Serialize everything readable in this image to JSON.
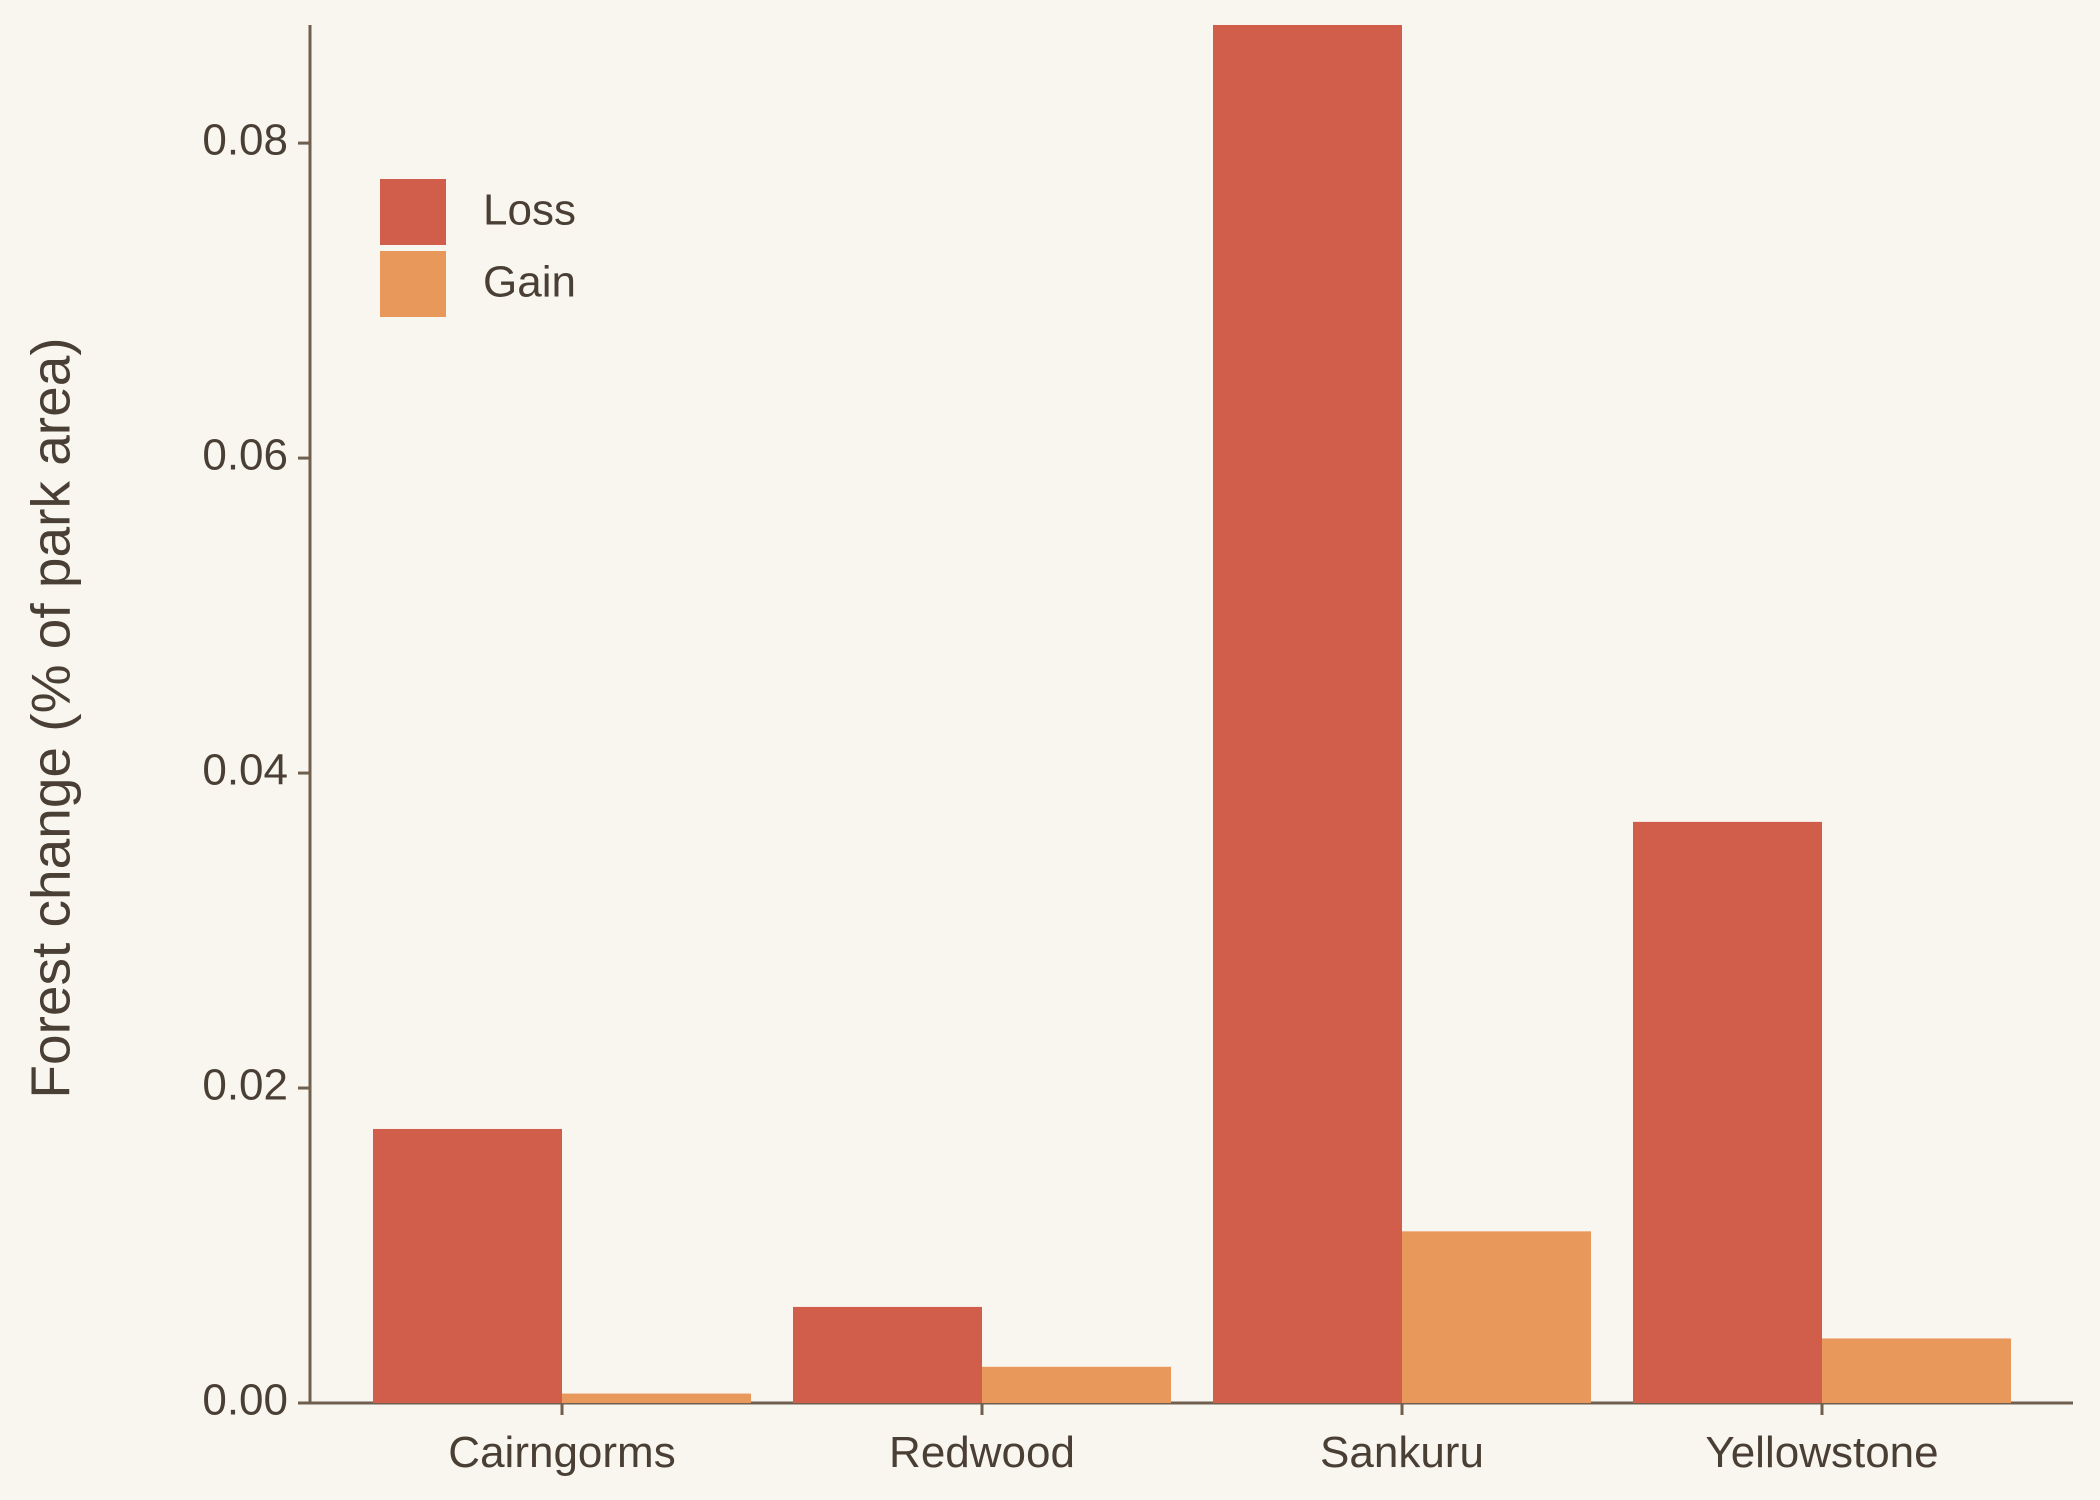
{
  "chart_data": {
    "type": "bar",
    "title": "",
    "xlabel": "",
    "ylabel": "Forest change (% of park area)",
    "categories": [
      "Cairngorms",
      "Redwood",
      "Sankuru",
      "Yellowstone"
    ],
    "series": [
      {
        "name": "Loss",
        "color": "#d15e4b",
        "values": [
          0.0174,
          0.0061,
          0.0875,
          0.0369
        ]
      },
      {
        "name": "Gain",
        "color": "#e8985b",
        "values": [
          0.0006,
          0.0023,
          0.0109,
          0.0041
        ]
      }
    ],
    "ylim": [
      0,
      0.0875
    ],
    "yticks": [
      0.0,
      0.02,
      0.04,
      0.06,
      0.08
    ],
    "ytick_labels": [
      "0.00",
      "0.02",
      "0.04",
      "0.06",
      "0.08"
    ],
    "grid": false,
    "legend_position": "top-left",
    "colors": {
      "background": "#f9f6f0",
      "axis": "#6e5f4e",
      "text": "#4a3f35"
    }
  }
}
